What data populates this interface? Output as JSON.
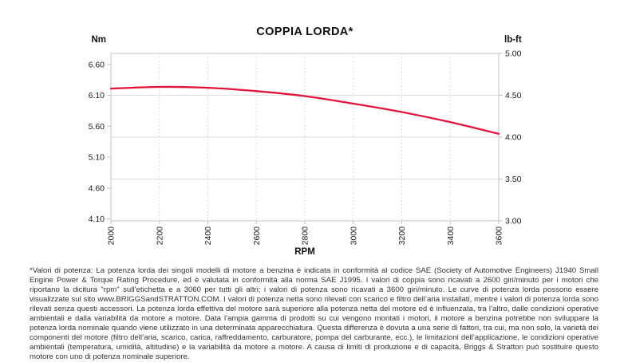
{
  "chart": {
    "title": "COPPIA LORDA*",
    "left_axis": {
      "unit": "Nm",
      "ticks": [
        "6.60",
        "6.10",
        "5.60",
        "5.10",
        "4.60",
        "4.10"
      ]
    },
    "right_axis": {
      "unit": "lb-ft",
      "ticks": [
        "5.00",
        "4.50",
        "4.00",
        "3.50",
        "3.00"
      ]
    },
    "x_axis": {
      "label": "RPM",
      "ticks": [
        "2000",
        "2200",
        "2400",
        "2600",
        "2800",
        "3000",
        "3200",
        "3400",
        "3600"
      ]
    },
    "colors": {
      "curve": "#e2143c",
      "border": "#c4c4c4",
      "grid": "#dedede",
      "tick_text": "#1c1c1c"
    }
  },
  "chart_data": {
    "type": "line",
    "title": "COPPIA LORDA*",
    "xlabel": "RPM",
    "ylabel_left": "Nm",
    "ylabel_right": "lb-ft",
    "x": [
      2000,
      2200,
      2400,
      2600,
      2800,
      3000,
      3200,
      3400,
      3600
    ],
    "series": [
      {
        "name": "Coppia lorda (lb-ft)",
        "values": [
          4.58,
          4.6,
          4.59,
          4.55,
          4.49,
          4.4,
          4.3,
          4.18,
          4.04
        ]
      }
    ],
    "ylim_right": [
      3.0,
      5.0
    ],
    "ylim_left_nm": [
      4.07,
      6.78
    ],
    "nm_per_lbft": 1.3558,
    "right_gridlines": [
      4.5,
      4.0,
      3.5
    ],
    "legend": "none",
    "grid": "horizontal solid, vertical dotted"
  },
  "footnote": {
    "text": "*Valori di potenza: La potenza lorda dei singoli modelli di motore a benzina è indicata in conformità al codice SAE (Society of Automotive Engineers) J1940 Small Engine Power & Torque Rating Procedure, ed è valutata in conformità alla norma SAE J1995. I valori di coppia sono ricavati a 2600 giri/minuto per i motori che riportano la dicitura \"rpm\" sull’etichetta e a 3060 per tutti gli altri; i valori di potenza sono ricavati a 3600 giri/minuto. Le curve di potenza lorda possono essere visualizzate sul sito www.BRIGGSandSTRATTON.COM. I valori di potenza netta sono rilevati con scarico e filtro dell’aria installati, mentre i valori di potenza lorda sono rilevati senza questi accessori. La potenza lorda effettiva del motore sarà superiore alla potenza netta del motore ed è influenzata, tra l’altro, dalle condizioni operative ambientali e dalla variabilità da motore a motore. Data l’ampia gamma di prodotti su cui vengono montati i motori, il motore a benzina potrebbe non sviluppare la potenza lorda nominale quando viene utilizzato in una determinata apparecchiatura. Questa differenza è dovuta a una serie di fattori, tra cui, ma non solo, la varietà dei componenti del motore (filtro dell’aria, scarico, carica, raffreddamento, carburatore, pompa del carburante, ecc.), le limitazioni dell’applicazione, le condizioni operative ambientali (temperatura, umidità, altitudine) e la variabilità da motore a motore. A causa di limiti di produzione e di capacità, Briggs & Stratton può sostituire questo motore con uno di potenza nominale superiore."
  }
}
